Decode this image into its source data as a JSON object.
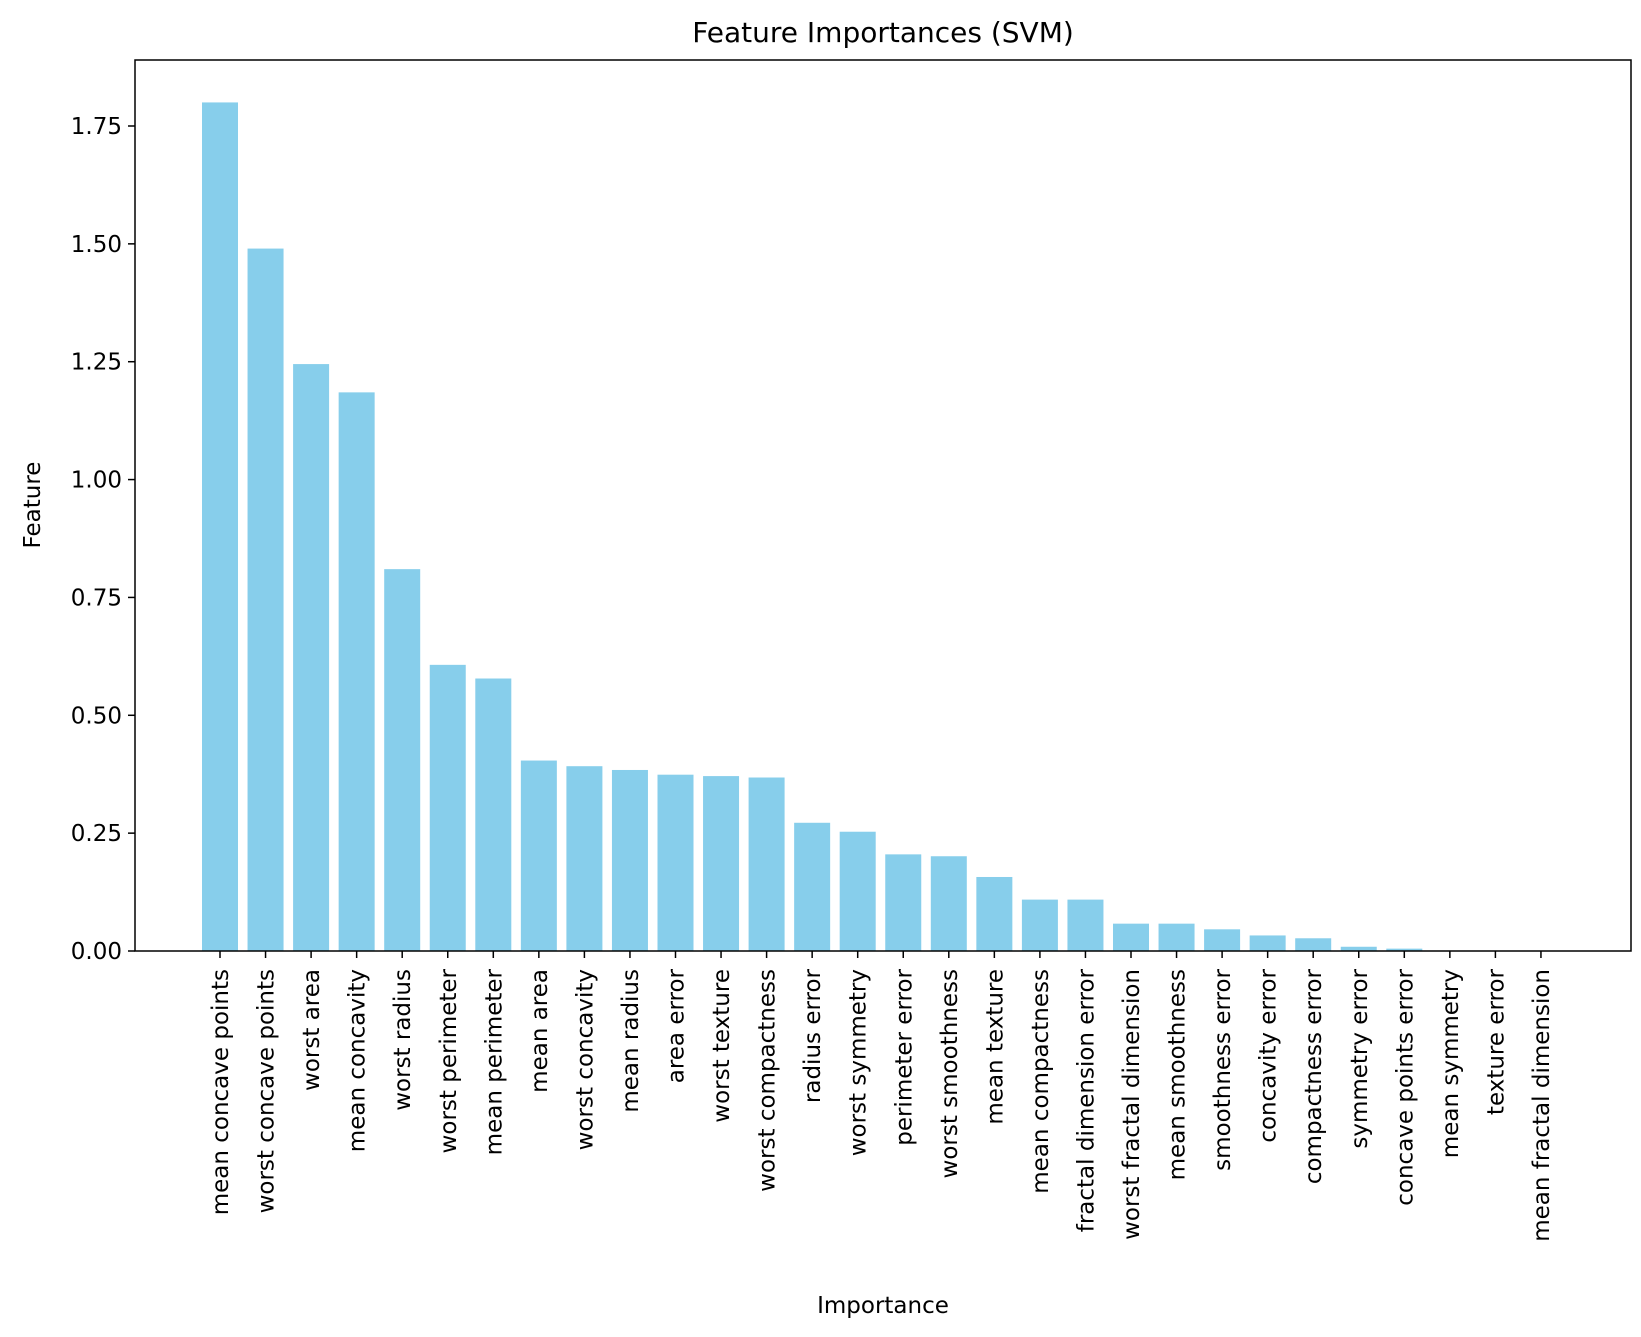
{
  "chart_data": {
    "type": "bar",
    "title": "Feature Importances (SVM)",
    "xlabel": "Importance",
    "ylabel": "Feature",
    "ylim": [
      0,
      1.89
    ],
    "yticks": [
      "0.00",
      "0.25",
      "0.50",
      "0.75",
      "1.00",
      "1.25",
      "1.50",
      "1.75"
    ],
    "ytick_values": [
      0,
      0.25,
      0.5,
      0.75,
      1.0,
      1.25,
      1.5,
      1.75
    ],
    "bar_color": "#87ceeb",
    "grid": false,
    "categories": [
      "mean concave points",
      "worst concave points",
      "worst area",
      "mean concavity",
      "worst radius",
      "worst perimeter",
      "mean perimeter",
      "mean area",
      "worst concavity",
      "mean radius",
      "area error",
      "worst texture",
      "worst compactness",
      "radius error",
      "worst symmetry",
      "perimeter error",
      "worst smoothness",
      "mean texture",
      "mean compactness",
      "fractal dimension error",
      "worst fractal dimension",
      "mean smoothness",
      "smoothness error",
      "concavity error",
      "compactness error",
      "symmetry error",
      "concave points error",
      "mean symmetry",
      "texture error",
      "mean fractal dimension"
    ],
    "values": [
      1.8,
      1.49,
      1.245,
      1.185,
      0.81,
      0.607,
      0.578,
      0.404,
      0.392,
      0.384,
      0.374,
      0.371,
      0.368,
      0.272,
      0.253,
      0.205,
      0.201,
      0.157,
      0.109,
      0.109,
      0.058,
      0.058,
      0.046,
      0.033,
      0.027,
      0.009,
      0.005,
      0.0005,
      0.0003,
      0.0002
    ]
  }
}
